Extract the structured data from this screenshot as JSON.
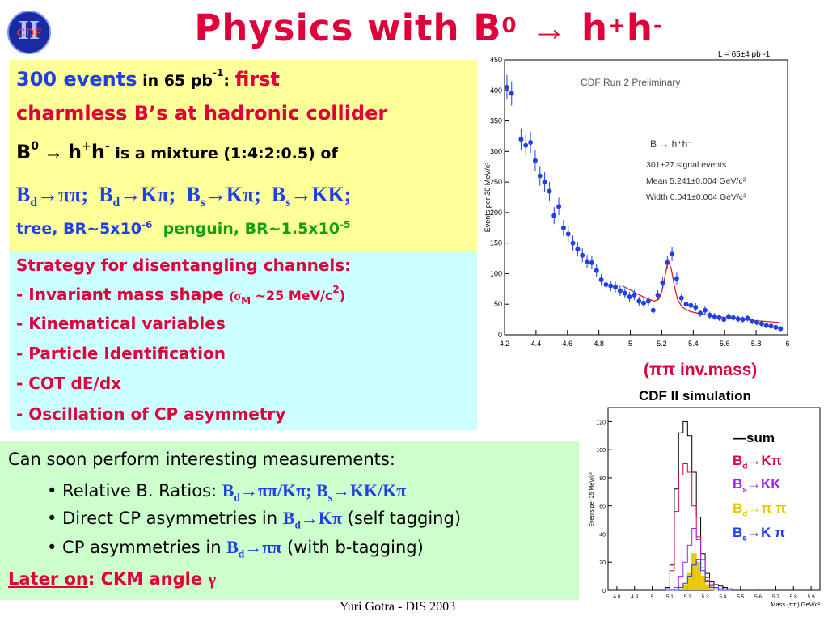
{
  "slide": {
    "logo_text": "CDF",
    "logo_roman": "II",
    "title": "Physics with B",
    "title_sup": "0",
    "title_arrow": "→",
    "title_tail": " h",
    "title_tail_sup1": "+",
    "title_tail2": "h",
    "title_tail_sup2": "-",
    "footer": "Yuri Gotra - DIS 2003"
  },
  "yellow": {
    "l1_a": "300 events",
    "l1_b": " in 65 pb",
    "l1_b_sup": "-1",
    "l1_c": ": ",
    "l1_d": "first",
    "l2": "charmless B’s at hadronic collider",
    "l3_a": "B",
    "l3_a_sup": "0",
    "l3_arrow": " → ",
    "l3_b": "h",
    "l3_b_sup1": "+",
    "l3_c": "h",
    "l3_c_sup": "-",
    "l3_d": " is a mixture (1:4:2:0.5) of",
    "l4": [
      {
        "b": "B",
        "sub": "d",
        "rest": "→ππ;"
      },
      {
        "b": "B",
        "sub": "d",
        "rest": "→Kπ;"
      },
      {
        "b": "B",
        "sub": "s",
        "rest": "→Kπ;"
      },
      {
        "b": "B",
        "sub": "s",
        "rest": "→KK;"
      }
    ],
    "l5_a": "tree, BR~5x10",
    "l5_a_sup": "-6",
    "l5_b": "penguin, BR~1.5x10",
    "l5_b_sup": "-5"
  },
  "cyan": {
    "heading": "Strategy for disentangling channels:",
    "items": [
      {
        "text": "- Invariant mass shape ",
        "extra": "(σ",
        "extra_sub": "M",
        "extra2": " ~25 MeV/c",
        "extra_sup": "2",
        "extra3": ")"
      },
      {
        "text": "- Kinematical variables"
      },
      {
        "text": "- Particle Identification"
      },
      {
        "text": "- COT dE/dx"
      },
      {
        "text": "- Oscillation of CP asymmetry"
      }
    ]
  },
  "green": {
    "heading": "Can soon perform interesting measurements:",
    "b1_a": "• Relative B. Ratios: ",
    "b1_b": "B",
    "b1_b_sub": "d",
    "b1_c": "→ππ/Kπ; B",
    "b1_c_sub": "s",
    "b1_d": "→KK/Kπ",
    "b2_a": "• Direct CP asymmetries in ",
    "b2_b": "B",
    "b2_b_sub": "d",
    "b2_c": "→Kπ",
    "b2_d": " (self tagging)",
    "b3_a": "• CP asymmetries in ",
    "b3_b": "B",
    "b3_b_sub": "d",
    "b3_c": "→ππ",
    "b3_d": " (with b-tagging)",
    "later_a": "Later on",
    "later_b": ":  CKM angle ",
    "later_gamma": "γ"
  },
  "plot_captions": {
    "pipi": "(ππ  inv.mass)",
    "sim_title": "CDF II  simulation"
  },
  "sim_legend": [
    {
      "prefix": "—",
      "label": "sum",
      "color": "#000000"
    },
    {
      "label": "B",
      "sub": "d",
      "rest": "→Kπ",
      "color": "#e0003a"
    },
    {
      "label": "B",
      "sub": "s",
      "rest": "→KK",
      "color": "#a020f0"
    },
    {
      "label": "B",
      "sub": "d",
      "rest": "→π π",
      "color": "#e8c800"
    },
    {
      "label": "B",
      "sub": "s",
      "rest": "→K π",
      "color": "#1f3fe8"
    }
  ],
  "chart_data": [
    {
      "type": "scatter",
      "title": "CDF Run 2 Preliminary",
      "lumi_label": "L = 65±4 pb",
      "lumi_sup": "-1",
      "ylabel": "Events per 30 MeV/c²",
      "xlim": [
        4.2,
        6.0
      ],
      "ylim": [
        0,
        450
      ],
      "xticks": [
        4.2,
        4.4,
        4.6,
        4.8,
        5.0,
        5.2,
        5.4,
        5.6,
        5.8,
        6.0
      ],
      "xtick_labels": [
        "4.2",
        "4.4",
        "4.6",
        "4.8",
        "5",
        "5.2",
        "5.4",
        "5.6",
        "5.8",
        "6"
      ],
      "yticks": [
        0,
        50,
        100,
        150,
        200,
        250,
        300,
        350,
        400,
        450
      ],
      "annotations": [
        "B → h⁺h⁻",
        "301±27 signal events",
        "Mean 5.241±0.004 GeV/c²",
        "Width 0.041±0.004 GeV/c²"
      ],
      "points": [
        [
          4.215,
          405
        ],
        [
          4.245,
          395
        ],
        [
          4.305,
          320
        ],
        [
          4.335,
          310
        ],
        [
          4.365,
          315
        ],
        [
          4.395,
          285
        ],
        [
          4.425,
          260
        ],
        [
          4.455,
          250
        ],
        [
          4.485,
          235
        ],
        [
          4.515,
          195
        ],
        [
          4.545,
          210
        ],
        [
          4.575,
          175
        ],
        [
          4.605,
          165
        ],
        [
          4.635,
          150
        ],
        [
          4.665,
          140
        ],
        [
          4.695,
          130
        ],
        [
          4.725,
          120
        ],
        [
          4.755,
          118
        ],
        [
          4.785,
          105
        ],
        [
          4.815,
          90
        ],
        [
          4.845,
          82
        ],
        [
          4.875,
          80
        ],
        [
          4.905,
          78
        ],
        [
          4.935,
          72
        ],
        [
          4.965,
          68
        ],
        [
          4.995,
          62
        ],
        [
          5.025,
          65
        ],
        [
          5.055,
          55
        ],
        [
          5.085,
          52
        ],
        [
          5.115,
          55
        ],
        [
          5.145,
          40
        ],
        [
          5.175,
          65
        ],
        [
          5.205,
          85
        ],
        [
          5.235,
          118
        ],
        [
          5.265,
          132
        ],
        [
          5.295,
          92
        ],
        [
          5.325,
          60
        ],
        [
          5.355,
          50
        ],
        [
          5.385,
          48
        ],
        [
          5.415,
          45
        ],
        [
          5.445,
          35
        ],
        [
          5.475,
          40
        ],
        [
          5.505,
          32
        ],
        [
          5.535,
          30
        ],
        [
          5.565,
          28
        ],
        [
          5.595,
          25
        ],
        [
          5.625,
          30
        ],
        [
          5.655,
          28
        ],
        [
          5.685,
          26
        ],
        [
          5.715,
          25
        ],
        [
          5.745,
          27
        ],
        [
          5.775,
          22
        ],
        [
          5.805,
          20
        ],
        [
          5.835,
          18
        ],
        [
          5.865,
          15
        ],
        [
          5.895,
          14
        ],
        [
          5.925,
          12
        ],
        [
          5.955,
          10
        ]
      ],
      "fit": [
        [
          4.95,
          80
        ],
        [
          5.0,
          73
        ],
        [
          5.05,
          66
        ],
        [
          5.1,
          60
        ],
        [
          5.15,
          55
        ],
        [
          5.18,
          58
        ],
        [
          5.2,
          70
        ],
        [
          5.22,
          95
        ],
        [
          5.24,
          122
        ],
        [
          5.26,
          108
        ],
        [
          5.28,
          80
        ],
        [
          5.3,
          58
        ],
        [
          5.33,
          45
        ],
        [
          5.38,
          38
        ],
        [
          5.45,
          34
        ],
        [
          5.55,
          30
        ],
        [
          5.65,
          27
        ],
        [
          5.75,
          24
        ],
        [
          5.85,
          22
        ],
        [
          5.95,
          20
        ]
      ]
    },
    {
      "type": "line",
      "title": "CDF II  simulation",
      "ylabel": "Events per 25 MeV/c²",
      "xlabel": "Mass (ππ) GeV/c²",
      "xlim": [
        4.75,
        5.95
      ],
      "ylim": [
        0,
        130
      ],
      "xticks": [
        4.8,
        4.9,
        5.0,
        5.1,
        5.2,
        5.3,
        5.4,
        5.5,
        5.6,
        5.7,
        5.8,
        5.9
      ],
      "xtick_labels": [
        "4.8",
        "4.9",
        "5",
        "5.1",
        "5.2",
        "5.3",
        "5.4",
        "5.5",
        "5.6",
        "5.7",
        "5.8",
        "5.9"
      ],
      "yticks": [
        0,
        20,
        40,
        60,
        80,
        100,
        120
      ],
      "bin_edges": [
        5.075,
        5.1,
        5.125,
        5.15,
        5.175,
        5.2,
        5.225,
        5.25,
        5.275,
        5.3,
        5.325,
        5.35,
        5.375,
        5.4,
        5.425,
        5.45
      ],
      "series": [
        {
          "name": "sum",
          "color": "#000000",
          "values": [
            2,
            18,
            72,
            112,
            120,
            110,
            84,
            52,
            26,
            12,
            6,
            4,
            3,
            2,
            1
          ]
        },
        {
          "name": "Bd→Kπ",
          "color": "#e0003a",
          "values": [
            1,
            14,
            56,
            82,
            90,
            84,
            60,
            38,
            16,
            7,
            3,
            2,
            1,
            1,
            0
          ]
        },
        {
          "name": "Bs→KK",
          "color": "#a020f0",
          "values": [
            0,
            0,
            2,
            10,
            20,
            32,
            44,
            36,
            22,
            9,
            4,
            2,
            1,
            0,
            0
          ]
        },
        {
          "name": "Bd→π π",
          "color": "#e8c800",
          "values": [
            0,
            0,
            0,
            1,
            4,
            12,
            26,
            20,
            10,
            4,
            1,
            0,
            0,
            0,
            0
          ]
        },
        {
          "name": "Bs→K π",
          "color": "#1f3fe8",
          "values": [
            0,
            0,
            0,
            2,
            5,
            10,
            18,
            22,
            14,
            6,
            2,
            1,
            0,
            0,
            0
          ]
        }
      ]
    }
  ]
}
